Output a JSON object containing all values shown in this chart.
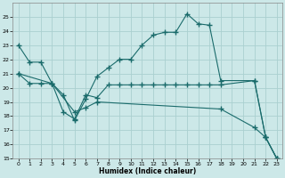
{
  "xlabel": "Humidex (Indice chaleur)",
  "bg_color": "#cce8e8",
  "grid_color": "#aad0d0",
  "line_color": "#1a6b6b",
  "ylim": [
    15,
    26
  ],
  "xlim": [
    -0.5,
    23.5
  ],
  "yticks": [
    15,
    16,
    17,
    18,
    19,
    20,
    21,
    22,
    23,
    24,
    25
  ],
  "xticks": [
    0,
    1,
    2,
    3,
    4,
    5,
    6,
    7,
    8,
    9,
    10,
    11,
    12,
    13,
    14,
    15,
    16,
    17,
    18,
    19,
    20,
    21,
    22,
    23
  ],
  "series": [
    {
      "x": [
        0,
        1,
        2,
        3,
        4,
        5,
        6,
        7,
        8,
        9,
        10,
        11,
        12,
        13,
        14,
        15,
        16,
        17,
        18,
        21,
        22,
        23
      ],
      "y": [
        23,
        21.8,
        21.8,
        20.3,
        19.5,
        17.7,
        19.2,
        20.8,
        21.4,
        22.0,
        22.0,
        23.0,
        23.7,
        23.9,
        23.9,
        25.2,
        24.5,
        24.4,
        20.5,
        20.5,
        16.5,
        15.0
      ]
    },
    {
      "x": [
        0,
        1,
        2,
        3,
        4,
        5,
        6,
        7,
        8,
        9,
        10,
        11,
        12,
        13,
        14,
        15,
        16,
        17,
        18,
        21,
        22,
        23
      ],
      "y": [
        21.0,
        20.3,
        20.3,
        20.3,
        18.3,
        17.8,
        19.5,
        19.3,
        20.2,
        20.2,
        20.2,
        20.2,
        20.2,
        20.2,
        20.2,
        20.2,
        20.2,
        20.2,
        20.2,
        20.5,
        16.5,
        15.0
      ]
    },
    {
      "x": [
        0,
        3,
        5,
        6,
        7,
        18,
        21,
        22,
        23
      ],
      "y": [
        21.0,
        20.3,
        18.3,
        18.6,
        19.0,
        18.5,
        17.2,
        16.5,
        15.0
      ]
    }
  ]
}
